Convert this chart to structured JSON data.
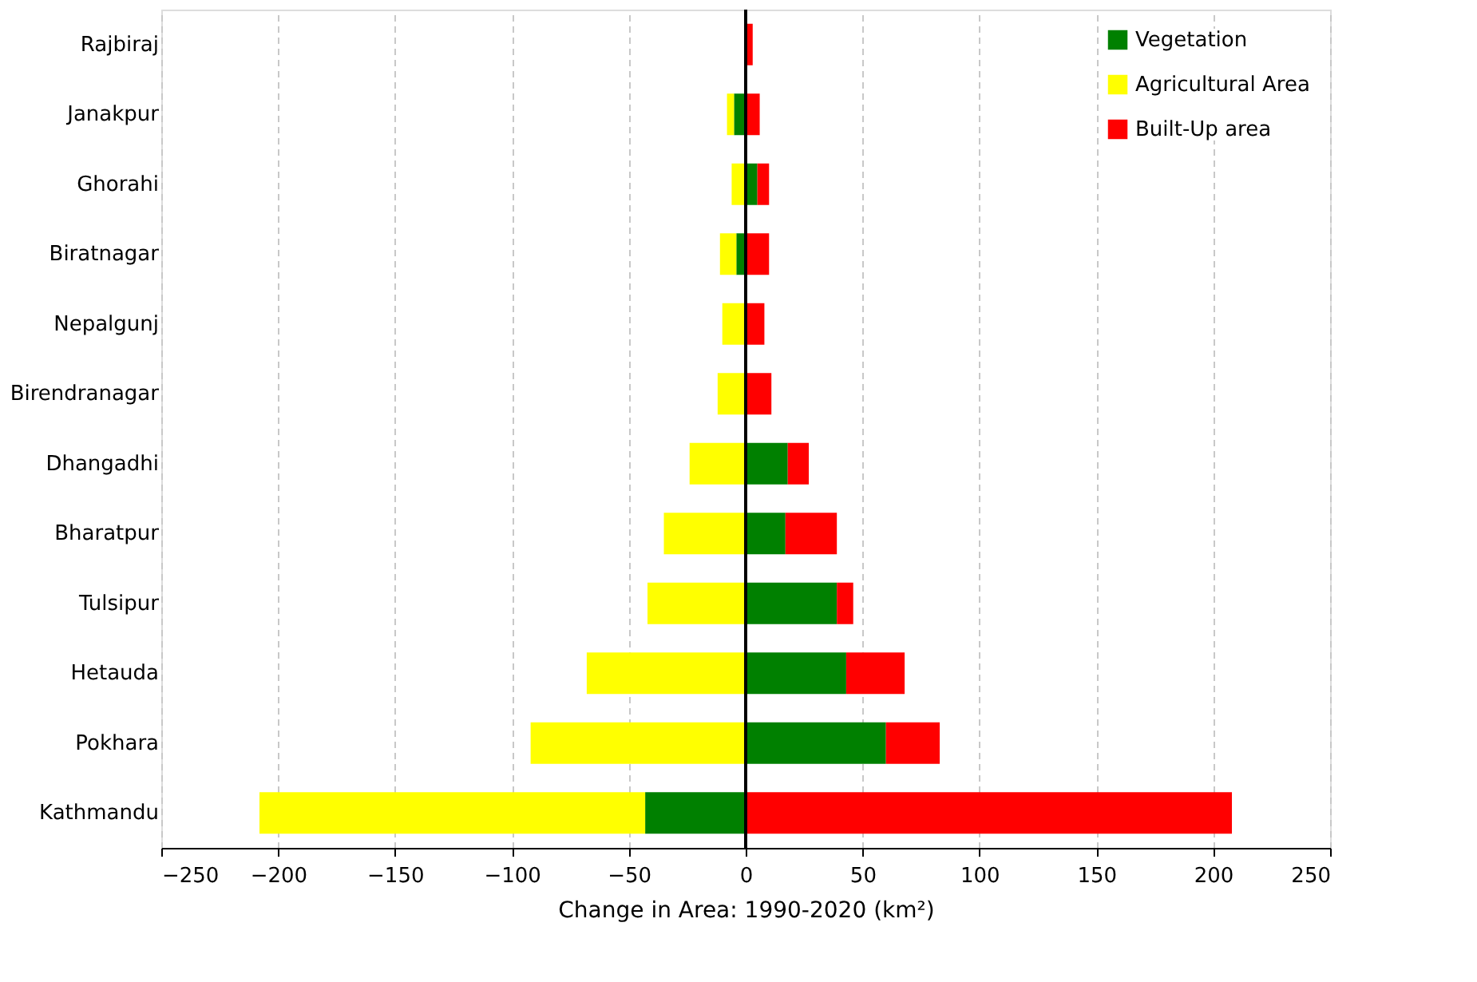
{
  "chart_data": {
    "type": "bar",
    "orientation": "horizontal",
    "stacked": true,
    "xlabel": "Change in Area: 1990-2020 (km²)",
    "categories": [
      "Rajbiraj",
      "Janakpur",
      "Ghorahi",
      "Biratnagar",
      "Nepalgunj",
      "Birendranagar",
      "Dhangadhi",
      "Bharatpur",
      "Tulsipur",
      "Hetauda",
      "Pokhara",
      "Kathmandu"
    ],
    "series": [
      {
        "name": "Vegetation",
        "color": "#008000",
        "values": [
          0,
          -5,
          5,
          -4,
          0,
          0,
          18,
          17,
          39,
          43,
          60,
          -43
        ]
      },
      {
        "name": "Agricultural Area",
        "color": "#ffff00",
        "values": [
          null,
          -3,
          -6,
          -7,
          -10,
          -12,
          -24,
          -35,
          -42,
          -68,
          -92,
          -165
        ]
      },
      {
        "name": "Built-Up area",
        "color": "#ff0000",
        "values": [
          3,
          6,
          5,
          10,
          8,
          11,
          9,
          22,
          7,
          25,
          23,
          208
        ]
      }
    ],
    "xlim": [
      -250,
      250
    ],
    "xticks": [
      -250,
      -200,
      -150,
      -100,
      -50,
      0,
      50,
      100,
      150,
      200,
      250
    ],
    "grid": "x",
    "legend": "top right"
  }
}
